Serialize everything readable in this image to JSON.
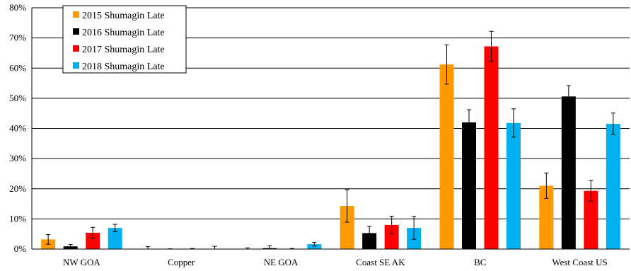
{
  "chart_data": {
    "type": "bar",
    "title": "",
    "xlabel": "",
    "ylabel": "",
    "ylim": [
      0,
      80
    ],
    "yticks": [
      "0%",
      "10%",
      "20%",
      "30%",
      "40%",
      "50%",
      "60%",
      "70%",
      "80%"
    ],
    "grid": "horizontal",
    "legend_position": "top-left",
    "categories": [
      "NW GOA",
      "Copper",
      "NE GOA",
      "Coast SE AK",
      "BC",
      "West Coast US"
    ],
    "series": [
      {
        "name": "2015 Shumagin Late",
        "color": "#FF9900",
        "values": [
          3.2,
          0.0,
          0.0,
          14.3,
          61.2,
          21.0
        ],
        "error": [
          1.6,
          0.8,
          0.4,
          5.4,
          6.5,
          4.2
        ]
      },
      {
        "name": "2016 Shumagin Late",
        "color": "#000000",
        "values": [
          0.9,
          0.0,
          0.3,
          5.3,
          42.0,
          50.6
        ],
        "error": [
          0.6,
          0.1,
          0.8,
          2.2,
          4.2,
          3.6
        ]
      },
      {
        "name": "2017 Shumagin Late",
        "color": "#FF0000",
        "values": [
          5.4,
          0.0,
          0.0,
          8.0,
          67.2,
          19.3
        ],
        "error": [
          1.8,
          0.2,
          0.2,
          2.9,
          5.0,
          3.4
        ]
      },
      {
        "name": "2018 Shumagin Late",
        "color": "#00B0F0",
        "values": [
          7.0,
          0.0,
          1.6,
          7.0,
          41.8,
          41.5
        ],
        "error": [
          1.2,
          0.9,
          0.6,
          3.8,
          4.7,
          3.6
        ]
      }
    ]
  }
}
